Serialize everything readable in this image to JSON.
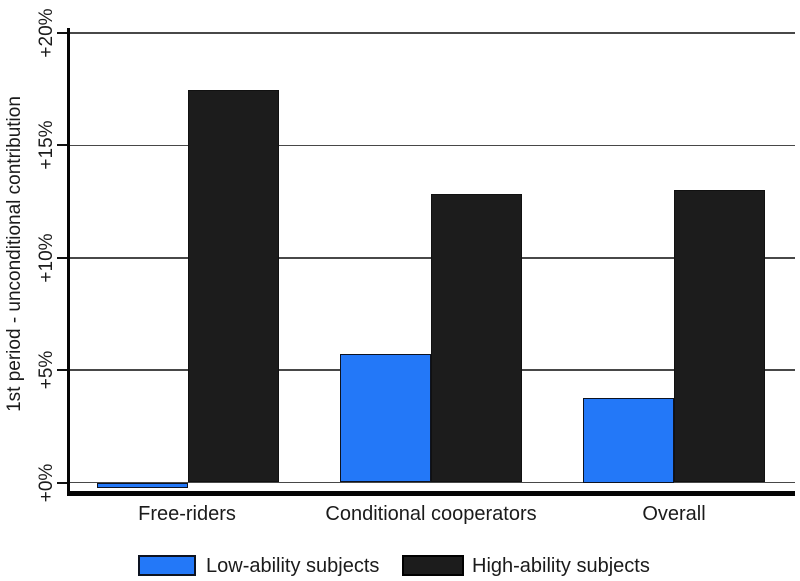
{
  "figure": {
    "background": "#ffffff",
    "text_color": "#1b1b1b"
  },
  "chart_data": {
    "type": "bar",
    "title": "",
    "xlabel": "",
    "ylabel": "1st period - unconditional contribution",
    "categories": [
      "Free-riders",
      "Conditional cooperators",
      "Overall"
    ],
    "series": [
      {
        "name": "Low-ability subjects",
        "values": [
          -0.25,
          5.7,
          3.75
        ],
        "fill": "#2378f8",
        "stroke": "#0d1321"
      },
      {
        "name": "High-ability subjects",
        "values": [
          17.45,
          12.85,
          13.0
        ],
        "fill": "#1c1c1c",
        "stroke": "#111111"
      }
    ],
    "y_ticks": [
      {
        "label": "+0%",
        "value": 0
      },
      {
        "label": "+5%",
        "value": 5
      },
      {
        "label": "+10%",
        "value": 10
      },
      {
        "label": "+15%",
        "value": 15
      },
      {
        "label": "+20%",
        "value": 20
      }
    ],
    "ylim": [
      -0.4,
      20.2
    ],
    "grid": true,
    "gridline_color": "#484848",
    "legend_position": "bottom"
  }
}
